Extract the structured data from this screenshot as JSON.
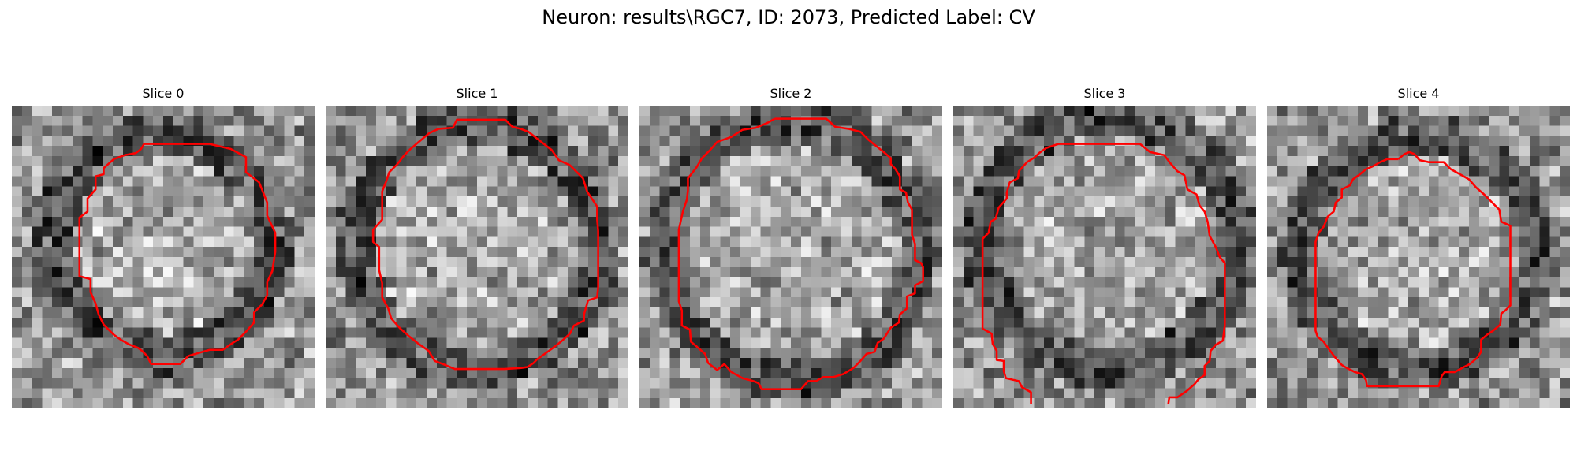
{
  "figure": {
    "suptitle": "Neuron: results\\RGC7, ID: 2073, Predicted Label: CV",
    "grid_size": 30,
    "contour_color": "#ff0000",
    "colormap": "gray"
  },
  "slices": [
    {
      "title": "Slice 0",
      "ring": {
        "cx": 15.0,
        "cy": 13.8,
        "r": 11.0
      },
      "contour": [
        [
          13.1,
          3.8
        ],
        [
          16.7,
          3.8
        ],
        [
          19.6,
          3.8
        ],
        [
          21.7,
          4.3
        ],
        [
          23.2,
          5.1
        ],
        [
          23.2,
          6.6
        ],
        [
          24.5,
          7.6
        ],
        [
          25.3,
          9.6
        ],
        [
          25.3,
          10.9
        ],
        [
          26.1,
          12.6
        ],
        [
          26.1,
          14.5
        ],
        [
          25.8,
          16.4
        ],
        [
          25.3,
          17.5
        ],
        [
          25.3,
          18.8
        ],
        [
          24.8,
          19.7
        ],
        [
          24.0,
          20.5
        ],
        [
          24.0,
          21.5
        ],
        [
          23.2,
          22.4
        ],
        [
          22.4,
          23.2
        ],
        [
          21.9,
          23.5
        ],
        [
          20.9,
          24.2
        ],
        [
          19.6,
          24.2
        ],
        [
          17.5,
          24.8
        ],
        [
          16.7,
          25.6
        ],
        [
          15.2,
          25.6
        ],
        [
          13.8,
          25.6
        ],
        [
          13.4,
          24.8
        ],
        [
          12.9,
          24.3
        ],
        [
          12.5,
          24.0
        ],
        [
          11.7,
          23.7
        ],
        [
          10.8,
          23.2
        ],
        [
          10.1,
          22.7
        ],
        [
          9.1,
          21.7
        ],
        [
          8.6,
          20.7
        ],
        [
          8.3,
          19.6
        ],
        [
          7.8,
          18.5
        ],
        [
          7.8,
          17.2
        ],
        [
          6.7,
          16.9
        ],
        [
          6.7,
          15.6
        ],
        [
          6.7,
          13.3
        ],
        [
          6.7,
          11.1
        ],
        [
          7.5,
          10.5
        ],
        [
          7.5,
          9.2
        ],
        [
          8.3,
          8.3
        ],
        [
          8.3,
          7.0
        ],
        [
          9.1,
          6.8
        ],
        [
          9.1,
          6.2
        ],
        [
          10.1,
          5.3
        ],
        [
          11.2,
          4.9
        ],
        [
          12.3,
          4.7
        ],
        [
          12.8,
          4.3
        ]
      ]
    },
    {
      "title": "Slice 1",
      "ring": {
        "cx": 15.0,
        "cy": 13.9,
        "r": 12.2
      },
      "contour": [
        [
          13.9,
          1.4
        ],
        [
          17.8,
          1.4
        ],
        [
          18.5,
          2.1
        ],
        [
          19.3,
          2.3
        ],
        [
          20.1,
          2.6
        ],
        [
          21.5,
          3.7
        ],
        [
          22.4,
          4.4
        ],
        [
          23.1,
          5.4
        ],
        [
          24.2,
          5.9
        ],
        [
          25.5,
          7.2
        ],
        [
          25.9,
          8.5
        ],
        [
          26.9,
          10.0
        ],
        [
          26.9,
          11.3
        ],
        [
          27.0,
          12.4
        ],
        [
          27.0,
          14.0
        ],
        [
          27.0,
          15.6
        ],
        [
          27.0,
          17.2
        ],
        [
          27.0,
          18.0
        ],
        [
          26.9,
          19.0
        ],
        [
          26.0,
          19.3
        ],
        [
          25.6,
          20.7
        ],
        [
          25.6,
          21.3
        ],
        [
          24.6,
          21.8
        ],
        [
          24.2,
          22.6
        ],
        [
          23.3,
          23.4
        ],
        [
          22.4,
          24.1
        ],
        [
          21.7,
          24.6
        ],
        [
          21.0,
          25.1
        ],
        [
          20.6,
          25.5
        ],
        [
          20.0,
          25.9
        ],
        [
          19.3,
          26.0
        ],
        [
          17.7,
          26.1
        ],
        [
          16.0,
          26.1
        ],
        [
          14.5,
          26.1
        ],
        [
          12.8,
          26.1
        ],
        [
          11.6,
          25.6
        ],
        [
          10.8,
          25.3
        ],
        [
          10.2,
          24.3
        ],
        [
          9.2,
          23.6
        ],
        [
          8.2,
          22.8
        ],
        [
          7.4,
          22.1
        ],
        [
          6.5,
          21.1
        ],
        [
          6.2,
          20.1
        ],
        [
          5.6,
          19.0
        ],
        [
          5.6,
          17.6
        ],
        [
          5.3,
          16.3
        ],
        [
          5.3,
          15.2
        ],
        [
          5.3,
          14.0
        ],
        [
          4.7,
          13.5
        ],
        [
          4.7,
          12.3
        ],
        [
          5.6,
          11.3
        ],
        [
          5.6,
          10.2
        ],
        [
          5.6,
          8.5
        ],
        [
          6.0,
          7.5
        ],
        [
          6.3,
          6.6
        ],
        [
          7.1,
          5.8
        ],
        [
          7.8,
          4.9
        ],
        [
          8.4,
          4.3
        ],
        [
          9.1,
          3.7
        ],
        [
          10.3,
          2.7
        ],
        [
          11.2,
          2.3
        ],
        [
          12.6,
          2.2
        ],
        [
          13.0,
          1.4
        ]
      ]
    },
    {
      "title": "Slice 2",
      "ring": {
        "cx": 15.0,
        "cy": 14.5,
        "r": 12.8
      },
      "contour": [
        [
          13.4,
          1.3
        ],
        [
          16.0,
          1.3
        ],
        [
          18.5,
          1.3
        ],
        [
          19.4,
          2.1
        ],
        [
          20.7,
          2.3
        ],
        [
          21.9,
          2.6
        ],
        [
          22.7,
          3.4
        ],
        [
          24.2,
          4.6
        ],
        [
          24.9,
          5.2
        ],
        [
          24.9,
          5.8
        ],
        [
          25.3,
          6.2
        ],
        [
          25.8,
          7.0
        ],
        [
          25.8,
          8.3
        ],
        [
          26.4,
          8.6
        ],
        [
          26.6,
          9.6
        ],
        [
          27.0,
          10.3
        ],
        [
          27.0,
          12.0
        ],
        [
          27.0,
          12.8
        ],
        [
          27.3,
          13.7
        ],
        [
          27.3,
          15.3
        ],
        [
          27.9,
          15.6
        ],
        [
          28.1,
          16.0
        ],
        [
          28.1,
          16.8
        ],
        [
          28.1,
          17.4
        ],
        [
          27.3,
          17.8
        ],
        [
          27.3,
          18.6
        ],
        [
          26.5,
          18.9
        ],
        [
          26.5,
          20.1
        ],
        [
          25.8,
          20.7
        ],
        [
          25.7,
          21.5
        ],
        [
          24.9,
          22.0
        ],
        [
          24.2,
          23.1
        ],
        [
          23.6,
          23.5
        ],
        [
          23.3,
          24.4
        ],
        [
          22.5,
          24.6
        ],
        [
          21.9,
          25.3
        ],
        [
          21.2,
          26.0
        ],
        [
          20.2,
          26.6
        ],
        [
          19.2,
          26.9
        ],
        [
          18.2,
          26.9
        ],
        [
          17.5,
          27.3
        ],
        [
          16.7,
          27.3
        ],
        [
          16.0,
          28.1
        ],
        [
          13.8,
          28.1
        ],
        [
          12.1,
          28.1
        ],
        [
          11.8,
          27.5
        ],
        [
          11.3,
          27.3
        ],
        [
          10.2,
          27.0
        ],
        [
          9.1,
          26.4
        ],
        [
          8.4,
          25.6
        ],
        [
          7.7,
          26.2
        ],
        [
          6.8,
          25.5
        ],
        [
          6.5,
          24.6
        ],
        [
          5.7,
          23.9
        ],
        [
          5.1,
          23.4
        ],
        [
          5.0,
          22.2
        ],
        [
          4.2,
          21.8
        ],
        [
          4.2,
          20.3
        ],
        [
          3.9,
          19.4
        ],
        [
          3.9,
          17.5
        ],
        [
          3.9,
          15.6
        ],
        [
          3.9,
          13.8
        ],
        [
          3.9,
          12.3
        ],
        [
          4.3,
          10.5
        ],
        [
          4.7,
          9.3
        ],
        [
          4.8,
          8.4
        ],
        [
          4.8,
          7.2
        ],
        [
          5.6,
          6.2
        ],
        [
          6.2,
          5.2
        ],
        [
          7.0,
          4.4
        ],
        [
          7.7,
          3.6
        ],
        [
          9.1,
          3.1
        ],
        [
          10.2,
          2.4
        ],
        [
          11.5,
          2.2
        ],
        [
          12.7,
          1.7
        ]
      ]
    },
    {
      "title": "Slice 3",
      "ring": {
        "cx": 15.5,
        "cy": 13.5,
        "r": 12.8
      },
      "contour": [
        [
          7.7,
          29.6
        ],
        [
          7.7,
          28.4
        ],
        [
          6.8,
          27.9
        ],
        [
          6.5,
          27.3
        ],
        [
          5.2,
          27.0
        ],
        [
          5.0,
          26.3
        ],
        [
          5.0,
          25.3
        ],
        [
          4.3,
          25.2
        ],
        [
          4.3,
          24.3
        ],
        [
          3.9,
          23.6
        ],
        [
          3.8,
          22.6
        ],
        [
          2.9,
          22.1
        ],
        [
          2.9,
          20.8
        ],
        [
          2.9,
          19.0
        ],
        [
          2.9,
          17.0
        ],
        [
          2.9,
          15.1
        ],
        [
          2.9,
          13.2
        ],
        [
          3.5,
          12.6
        ],
        [
          3.7,
          11.5
        ],
        [
          4.2,
          11.2
        ],
        [
          4.5,
          10.1
        ],
        [
          5.3,
          9.2
        ],
        [
          5.3,
          8.6
        ],
        [
          5.6,
          7.6
        ],
        [
          6.4,
          7.2
        ],
        [
          6.5,
          6.5
        ],
        [
          7.3,
          5.6
        ],
        [
          8.1,
          5.1
        ],
        [
          8.5,
          4.7
        ],
        [
          9.2,
          4.2
        ],
        [
          10.4,
          3.8
        ],
        [
          11.0,
          3.8
        ],
        [
          13.2,
          3.8
        ],
        [
          15.0,
          3.8
        ],
        [
          17.2,
          3.8
        ],
        [
          18.5,
          3.8
        ],
        [
          19.5,
          4.6
        ],
        [
          20.9,
          4.9
        ],
        [
          21.5,
          5.7
        ],
        [
          22.2,
          6.5
        ],
        [
          22.9,
          6.9
        ],
        [
          23.2,
          8.3
        ],
        [
          24.1,
          8.8
        ],
        [
          24.4,
          9.9
        ],
        [
          24.9,
          10.5
        ],
        [
          25.2,
          11.5
        ],
        [
          25.4,
          12.9
        ],
        [
          26.0,
          14.0
        ],
        [
          26.4,
          15.0
        ],
        [
          26.9,
          15.6
        ],
        [
          26.9,
          17.2
        ],
        [
          26.9,
          18.8
        ],
        [
          26.9,
          20.3
        ],
        [
          26.9,
          21.8
        ],
        [
          26.7,
          23.3
        ],
        [
          26.0,
          23.7
        ],
        [
          25.5,
          24.3
        ],
        [
          25.4,
          25.3
        ],
        [
          24.9,
          25.8
        ],
        [
          24.9,
          26.7
        ],
        [
          24.3,
          27.1
        ],
        [
          23.9,
          27.6
        ],
        [
          23.1,
          28.3
        ],
        [
          22.2,
          28.9
        ],
        [
          21.4,
          28.9
        ],
        [
          21.3,
          29.6
        ]
      ]
    },
    {
      "title": "Slice 4",
      "ring": {
        "cx": 15.0,
        "cy": 14.5,
        "r": 11.8
      },
      "contour": [
        [
          13.0,
          5.3
        ],
        [
          13.6,
          4.8
        ],
        [
          14.1,
          4.6
        ],
        [
          14.6,
          4.8
        ],
        [
          15.1,
          5.4
        ],
        [
          16.0,
          5.6
        ],
        [
          17.5,
          5.6
        ],
        [
          18.2,
          6.3
        ],
        [
          19.1,
          6.8
        ],
        [
          20.0,
          7.3
        ],
        [
          20.7,
          8.1
        ],
        [
          21.5,
          8.8
        ],
        [
          22.3,
          9.6
        ],
        [
          23.0,
          10.3
        ],
        [
          23.2,
          11.5
        ],
        [
          24.1,
          11.9
        ],
        [
          24.1,
          13.3
        ],
        [
          24.1,
          15.2
        ],
        [
          24.1,
          17.1
        ],
        [
          24.1,
          18.5
        ],
        [
          24.1,
          19.8
        ],
        [
          23.6,
          20.3
        ],
        [
          23.2,
          20.6
        ],
        [
          23.1,
          21.7
        ],
        [
          22.4,
          22.3
        ],
        [
          21.8,
          22.7
        ],
        [
          21.2,
          23.2
        ],
        [
          21.2,
          24.4
        ],
        [
          20.8,
          25.0
        ],
        [
          20.1,
          25.6
        ],
        [
          19.5,
          25.9
        ],
        [
          18.6,
          26.4
        ],
        [
          17.6,
          26.4
        ],
        [
          17.3,
          26.8
        ],
        [
          17.0,
          27.8
        ],
        [
          15.6,
          27.8
        ],
        [
          14.1,
          27.8
        ],
        [
          12.7,
          27.8
        ],
        [
          11.5,
          27.8
        ],
        [
          9.9,
          27.8
        ],
        [
          9.8,
          27.2
        ],
        [
          9.4,
          26.6
        ],
        [
          8.7,
          26.4
        ],
        [
          7.9,
          26.0
        ],
        [
          7.4,
          25.7
        ],
        [
          6.7,
          24.9
        ],
        [
          6.1,
          24.1
        ],
        [
          5.6,
          23.4
        ],
        [
          5.0,
          22.9
        ],
        [
          4.8,
          22.3
        ],
        [
          4.8,
          21.0
        ],
        [
          4.8,
          19.5
        ],
        [
          4.8,
          18.0
        ],
        [
          4.8,
          16.5
        ],
        [
          4.8,
          15.1
        ],
        [
          4.8,
          13.5
        ],
        [
          5.1,
          12.6
        ],
        [
          5.6,
          12.0
        ],
        [
          6.0,
          11.0
        ],
        [
          6.6,
          10.5
        ],
        [
          6.8,
          9.6
        ],
        [
          7.4,
          9.1
        ],
        [
          7.4,
          8.3
        ],
        [
          8.2,
          7.9
        ],
        [
          8.5,
          7.3
        ],
        [
          9.2,
          6.8
        ],
        [
          9.8,
          6.3
        ],
        [
          10.5,
          6.0
        ],
        [
          11.2,
          5.6
        ],
        [
          11.9,
          5.3
        ],
        [
          12.4,
          5.3
        ]
      ]
    }
  ]
}
